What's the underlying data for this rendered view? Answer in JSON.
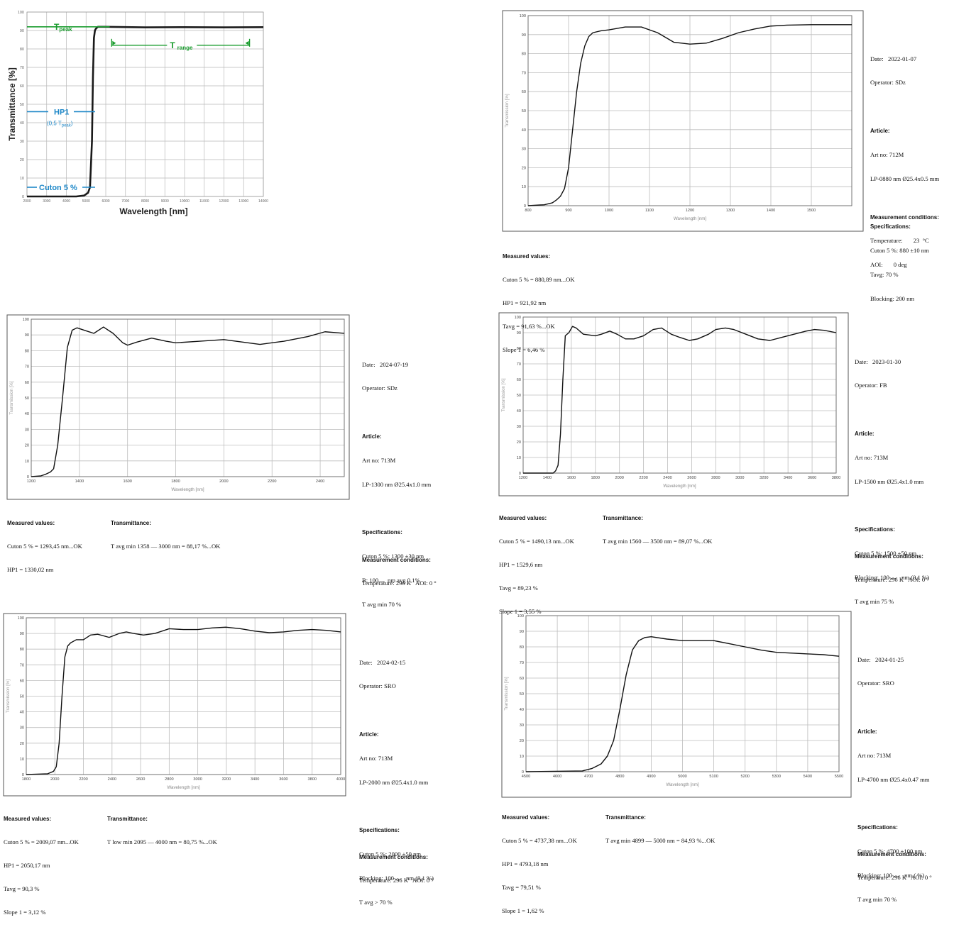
{
  "chart_data": [
    {
      "id": "schematic",
      "type": "line",
      "xlabel": "Wavelength [nm]",
      "ylabel": "Transmittance [%]",
      "xlim": [
        2000,
        14000
      ],
      "ylim": [
        0,
        100
      ],
      "xticks": [
        "2000",
        "3000",
        "4000",
        "5000",
        "6000",
        "7000",
        "8000",
        "9000",
        "10000",
        "11000",
        "12000",
        "13000",
        "14000"
      ],
      "yticks": [
        "0",
        "10",
        "20",
        "30",
        "40",
        "50",
        "60",
        "70",
        "80",
        "90",
        "100"
      ],
      "series": [
        {
          "x": [
            2000,
            4500,
            4900,
            5100,
            5200,
            5300,
            5350,
            5400,
            5450,
            5500,
            5600,
            6000,
            8000,
            10000,
            12000,
            14000
          ],
          "y": [
            0,
            0,
            0.5,
            2,
            5,
            30,
            65,
            86,
            90,
            91,
            92,
            92,
            91.7,
            91.8,
            91.7,
            91.8
          ]
        }
      ],
      "annotations": {
        "tpeak": {
          "label": "T",
          "sub": "peak",
          "value": 92
        },
        "trange": {
          "label": "T",
          "sub": "range",
          "from": 6300,
          "to": 13300,
          "y": 82
        },
        "hp1": {
          "label": "HP1",
          "sub_text": "(0,5 T",
          "sub_sub": "peak",
          "sub_close": ")",
          "value": 46
        },
        "cuton": {
          "label": "Cuton 5 %",
          "value": 5
        }
      },
      "colors": {
        "green": "#1a9c2e",
        "blue": "#1f88c8",
        "curve": "#1a1a1a",
        "grid": "#b8b8b8"
      }
    },
    {
      "id": "lp0880",
      "type": "line",
      "xlabel": "Wavelength [nm]",
      "ylabel": "Transmission [%]",
      "xlim": [
        800,
        1600
      ],
      "ylim": [
        0,
        100
      ],
      "xticks": [
        "800",
        "900",
        "1000",
        "1100",
        "1200",
        "1300",
        "1400",
        "1500"
      ],
      "yticks": [
        "0",
        "10",
        "20",
        "30",
        "40",
        "50",
        "60",
        "70",
        "80",
        "90",
        "100"
      ],
      "series": [
        {
          "x": [
            800,
            840,
            860,
            870,
            880,
            890,
            900,
            910,
            920,
            930,
            940,
            950,
            960,
            980,
            1000,
            1040,
            1080,
            1120,
            1160,
            1200,
            1240,
            1280,
            1320,
            1360,
            1400,
            1440,
            1500,
            1600
          ],
          "y": [
            0,
            0.5,
            1.5,
            3,
            5,
            9,
            20,
            40,
            60,
            75,
            84,
            89,
            91,
            92,
            92.5,
            94,
            94,
            91,
            86,
            85,
            85.5,
            88,
            91,
            93,
            94.5,
            95,
            95.2,
            95.2
          ]
        }
      ]
    },
    {
      "id": "lp1300",
      "type": "line",
      "xlabel": "Wavelength [nm]",
      "ylabel": "Transmission [%]",
      "xlim": [
        1200,
        2500
      ],
      "ylim": [
        0,
        100
      ],
      "xticks": [
        "1200",
        "1400",
        "1600",
        "1800",
        "2000",
        "2200",
        "2400"
      ],
      "yticks": [
        "0",
        "10",
        "20",
        "30",
        "40",
        "50",
        "60",
        "70",
        "80",
        "90",
        "100"
      ],
      "series": [
        {
          "x": [
            1200,
            1240,
            1260,
            1280,
            1293,
            1310,
            1330,
            1350,
            1370,
            1390,
            1420,
            1460,
            1500,
            1540,
            1580,
            1600,
            1640,
            1700,
            1760,
            1800,
            1900,
            2000,
            2050,
            2150,
            2250,
            2350,
            2420,
            2500
          ],
          "y": [
            0,
            0.5,
            1.5,
            3,
            5,
            20,
            50,
            82,
            93,
            94.5,
            93,
            91,
            95,
            91,
            85,
            83.5,
            85.5,
            88,
            86,
            85,
            86,
            87,
            86,
            84,
            86,
            89,
            92,
            91
          ]
        }
      ]
    },
    {
      "id": "lp1500",
      "type": "line",
      "xlabel": "Wavelength [nm]",
      "ylabel": "Transmission [%]",
      "xlim": [
        1200,
        3800
      ],
      "ylim": [
        0,
        100
      ],
      "xticks": [
        "1200",
        "1400",
        "1600",
        "1800",
        "2000",
        "2200",
        "2400",
        "2600",
        "2800",
        "3000",
        "3200",
        "3400",
        "3600",
        "3800"
      ],
      "yticks": [
        "0",
        "10",
        "20",
        "30",
        "40",
        "50",
        "60",
        "70",
        "80",
        "90",
        "100"
      ],
      "series": [
        {
          "x": [
            1200,
            1450,
            1470,
            1490,
            1510,
            1530,
            1550,
            1580,
            1610,
            1640,
            1700,
            1800,
            1850,
            1920,
            1980,
            2050,
            2120,
            2200,
            2280,
            2350,
            2430,
            2500,
            2580,
            2650,
            2740,
            2800,
            2880,
            2950,
            3050,
            3150,
            3250,
            3350,
            3450,
            3550,
            3620,
            3700,
            3800
          ],
          "y": [
            0,
            0,
            1.5,
            5,
            25,
            60,
            88,
            90,
            94,
            93,
            89,
            88,
            89,
            91,
            89,
            86,
            86,
            88,
            92,
            93,
            89,
            87,
            85,
            86,
            89,
            92,
            93,
            92,
            89,
            86,
            85,
            87,
            89,
            91,
            92,
            91.5,
            90
          ]
        }
      ]
    },
    {
      "id": "lp2000",
      "type": "line",
      "xlabel": "Wavelength [nm]",
      "ylabel": "Transmission [%]",
      "xlim": [
        1800,
        4000
      ],
      "ylim": [
        0,
        100
      ],
      "xticks": [
        "1800",
        "2000",
        "2200",
        "2400",
        "2600",
        "2800",
        "3000",
        "3200",
        "3400",
        "3600",
        "3800",
        "4000"
      ],
      "yticks": [
        "0",
        "10",
        "20",
        "30",
        "40",
        "50",
        "60",
        "70",
        "80",
        "90",
        "100"
      ],
      "series": [
        {
          "x": [
            1800,
            1950,
            1990,
            2010,
            2030,
            2050,
            2070,
            2090,
            2110,
            2150,
            2200,
            2250,
            2300,
            2380,
            2450,
            2500,
            2550,
            2620,
            2700,
            2800,
            2900,
            3000,
            3100,
            3200,
            3300,
            3400,
            3500,
            3600,
            3700,
            3800,
            3900,
            4000
          ],
          "y": [
            0,
            0.5,
            2,
            5,
            20,
            50,
            75,
            82,
            84,
            86,
            86,
            89,
            89.5,
            87.5,
            90,
            91,
            90,
            89,
            90,
            93,
            92.5,
            92.5,
            93.5,
            94,
            93,
            91.5,
            90.5,
            91,
            92,
            92.5,
            92,
            91
          ]
        }
      ]
    },
    {
      "id": "lp4700",
      "type": "line",
      "xlabel": "Wavelength [nm]",
      "ylabel": "Transmission [%]",
      "xlim": [
        4500,
        5500
      ],
      "ylim": [
        0,
        100
      ],
      "xticks": [
        "4500",
        "4600",
        "4700",
        "4800",
        "4900",
        "5000",
        "5100",
        "5200",
        "5300",
        "5400",
        "5500"
      ],
      "yticks": [
        "0",
        "10",
        "20",
        "30",
        "40",
        "50",
        "60",
        "70",
        "80",
        "90",
        "100"
      ],
      "series": [
        {
          "x": [
            4500,
            4680,
            4710,
            4730,
            4740,
            4760,
            4780,
            4800,
            4820,
            4840,
            4860,
            4880,
            4900,
            4950,
            5000,
            5050,
            5100,
            5150,
            5200,
            5250,
            5300,
            5350,
            5400,
            5450,
            5500
          ],
          "y": [
            0,
            0.5,
            2,
            4,
            5,
            10,
            20,
            40,
            62,
            78,
            84,
            86,
            86.5,
            85,
            84,
            84,
            84,
            82,
            80,
            78,
            76.5,
            76,
            75.5,
            75,
            74
          ]
        }
      ]
    }
  ],
  "schematic_text": {
    "ylabel": "Transmittance [%]",
    "xlabel": "Wavelength [nm]"
  },
  "sheets": {
    "lp0880": {
      "meta": {
        "date": "Date:   2022-01-07",
        "operator": "Operator: SDz",
        "article_hd": "Article:",
        "art_no": "Art no: 712M",
        "product": "LP-0880 nm Ø25.4x0.5 mm",
        "spec_hd": "Specifications:",
        "spec1": "Cuton 5 %: 880 ±10 nm",
        "spec2": "Tavg: 70 %",
        "spec3": "Blocking: 200 nm",
        "cond_hd": "Measurement conditions:",
        "cond1": "Temperature:       23  °C",
        "cond2": "AOI:       0 deg"
      },
      "measured": {
        "hd": "Measured values:",
        "v1": "Cuton 5 % = 880,89 nm...OK",
        "v2": "HP1 = 921,92 nm",
        "v3": "Tavg = 91,63 %...OK",
        "v4": "Slope 1 = 6,46 %"
      }
    },
    "lp1300": {
      "meta": {
        "date": "Date:   2024-07-19",
        "operator": "Operator: SDz",
        "article_hd": "Article:",
        "art_no": "Art no: 713M",
        "product": "LP-1300 nm Ø25.4x1.0 mm",
        "spec_hd": "Specifications:",
        "spec1": "Cuton 5 %: 1300 ±30 nm",
        "spec2": "B: 100—  nm avg 0,1%",
        "spec3": "T avg min 70 %",
        "cond_hd": "Measurement conditions:",
        "cond1": "Temperature: 296 K   AOI: 0 °"
      },
      "measured": {
        "hd": "Measured values:",
        "v1": "Cuton 5 % = 1293,45 nm...OK",
        "v2": "HP1 = 1330,02 nm"
      },
      "transmittance": {
        "hd": "Transmittance:",
        "v1": "T avg min 1358 — 3000 nm = 88,17 %...OK"
      }
    },
    "lp1500": {
      "meta": {
        "date": "Date:   2023-01-30",
        "operator": "Operator: FB",
        "article_hd": "Article:",
        "art_no": "Art no: 713M",
        "product": "LP-1500 nm Ø25.4x1.0 mm",
        "spec_hd": "Specifications:",
        "spec1": "Cuton 5 %: 1500 ±50 nm",
        "spec2": "Blocking: 100 —   nm (0,1 %)",
        "spec3": "T avg min 75 %",
        "cond_hd": "Measurement conditions:",
        "cond1": "Temperature: 296 K   AOI: 0 °"
      },
      "measured": {
        "hd": "Measured values:",
        "v1": "Cuton 5 % = 1490,13 nm...OK",
        "v2": "HP1 = 1529,6 nm",
        "v3": "Tavg = 89,23 %",
        "v4": "Slope 1 = 3,55 %"
      },
      "transmittance": {
        "hd": "Transmittance:",
        "v1": "T avg min 1560 — 3500 nm = 89,07 %...OK"
      }
    },
    "lp2000": {
      "meta": {
        "date": "Date:   2024-02-15",
        "operator": "Operator: SRO",
        "article_hd": "Article:",
        "art_no": "Art no: 713M",
        "product": "LP-2000 nm Ø25.4x1.0 mm",
        "spec_hd": "Specifications:",
        "spec1": "Cuton 5 %: 2000 ±50 nm",
        "spec2": "Blocking: 100 —   nm (0,1 %)",
        "spec3": "T avg > 70 %",
        "cond_hd": "Measurement conditions:",
        "cond1": "Temperature: 296 K   AOI: 0 °"
      },
      "measured": {
        "hd": "Measured values:",
        "v1": "Cuton 5 % = 2009,07 nm...OK",
        "v2": "HP1 = 2050,17 nm",
        "v3": "Tavg = 90,3 %",
        "v4": "Slope 1 = 3,12 %"
      },
      "transmittance": {
        "hd": "Transmittance:",
        "v1": "T low min 2095 — 4000 nm = 80,75 %...OK"
      }
    },
    "lp4700": {
      "meta": {
        "date": "Date:   2024-01-25",
        "operator": "Operator: SRO",
        "article_hd": "Article:",
        "art_no": "Art no: 713M",
        "product": "LP-4700 nm Ø25.4x0.47 mm",
        "spec_hd": "Specifications:",
        "spec1": "Cuton 5 %: 4700 ±100 nm",
        "spec2": "Blocking: 100 —   nm ( %)",
        "spec3": "T avg min 70 %",
        "cond_hd": "Measurement conditions:",
        "cond1": "Temperature: 296 K   AOI: 0 °"
      },
      "measured": {
        "hd": "Measured values:",
        "v1": "Cuton 5 % = 4737,38 nm...OK",
        "v2": "HP1 = 4793,18 nm",
        "v3": "Tavg = 79,51 %",
        "v4": "Slope 1 = 1,62 %"
      },
      "transmittance": {
        "hd": "Transmittance:",
        "v1": "T avg min 4899 — 5000 nm = 84,93 %...OK"
      }
    }
  }
}
